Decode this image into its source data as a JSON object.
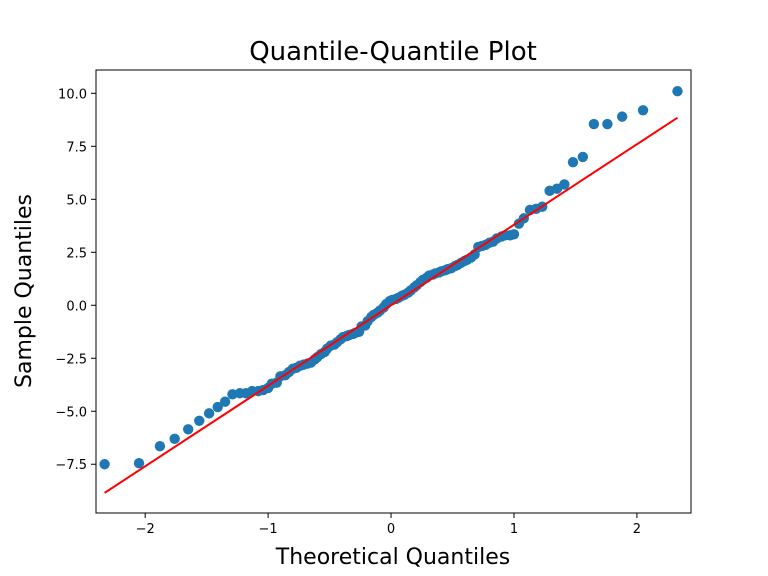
{
  "chart_data": {
    "type": "scatter",
    "title": "Quantile-Quantile Plot",
    "xlabel": "Theoretical Quantiles",
    "ylabel": "Sample Quantiles",
    "xlim": [
      -2.4,
      2.44
    ],
    "ylim": [
      -9.8,
      11.1
    ],
    "x_ticks": [
      -2,
      -1,
      0,
      1,
      2
    ],
    "x_tick_labels": [
      "−2",
      "−1",
      "0",
      "1",
      "2"
    ],
    "y_ticks": [
      -7.5,
      -5.0,
      -2.5,
      0.0,
      2.5,
      5.0,
      7.5,
      10.0
    ],
    "y_tick_labels": [
      "−7.5",
      "−5.0",
      "−2.5",
      "0.0",
      "2.5",
      "5.0",
      "7.5",
      "10.0"
    ],
    "grid": false,
    "legend": "none",
    "series": [
      {
        "kind": "points",
        "color": "#1f77b4",
        "x": [
          -2.33,
          -2.05,
          -1.88,
          -1.76,
          -1.65,
          -1.56,
          -1.48,
          -1.41,
          -1.35,
          -1.29,
          -1.23,
          -1.18,
          -1.13,
          -1.08,
          -1.04,
          -1.0,
          -0.97,
          -0.93,
          -0.9,
          -0.86,
          -0.83,
          -0.8,
          -0.77,
          -0.74,
          -0.71,
          -0.68,
          -0.65,
          -0.62,
          -0.6,
          -0.57,
          -0.54,
          -0.52,
          -0.49,
          -0.46,
          -0.44,
          -0.41,
          -0.39,
          -0.36,
          -0.34,
          -0.31,
          -0.29,
          -0.26,
          -0.24,
          -0.21,
          -0.19,
          -0.16,
          -0.14,
          -0.11,
          -0.09,
          -0.06,
          -0.04,
          -0.01,
          0.01,
          0.04,
          0.06,
          0.09,
          0.11,
          0.14,
          0.16,
          0.19,
          0.21,
          0.24,
          0.26,
          0.29,
          0.31,
          0.34,
          0.36,
          0.39,
          0.41,
          0.44,
          0.46,
          0.49,
          0.52,
          0.54,
          0.57,
          0.6,
          0.62,
          0.65,
          0.68,
          0.71,
          0.74,
          0.77,
          0.8,
          0.83,
          0.86,
          0.9,
          0.93,
          0.97,
          1.0,
          1.04,
          1.08,
          1.13,
          1.18,
          1.23,
          1.29,
          1.35,
          1.41,
          1.48,
          1.56,
          1.65,
          1.76,
          1.88,
          2.05,
          2.33
        ],
        "y": [
          -7.5,
          -7.45,
          -6.65,
          -6.3,
          -5.85,
          -5.45,
          -5.1,
          -4.8,
          -4.55,
          -4.2,
          -4.15,
          -4.15,
          -4.05,
          -4.05,
          -4.0,
          -3.9,
          -3.7,
          -3.65,
          -3.35,
          -3.3,
          -3.15,
          -3.0,
          -2.95,
          -2.85,
          -2.8,
          -2.75,
          -2.7,
          -2.55,
          -2.45,
          -2.3,
          -2.2,
          -2.05,
          -1.9,
          -1.85,
          -1.75,
          -1.6,
          -1.5,
          -1.45,
          -1.4,
          -1.35,
          -1.3,
          -1.25,
          -1.0,
          -0.95,
          -0.75,
          -0.55,
          -0.45,
          -0.35,
          -0.25,
          -0.1,
          0.05,
          0.2,
          0.25,
          0.3,
          0.35,
          0.45,
          0.5,
          0.6,
          0.7,
          0.85,
          0.95,
          1.1,
          1.2,
          1.3,
          1.4,
          1.45,
          1.5,
          1.55,
          1.6,
          1.65,
          1.7,
          1.75,
          1.85,
          1.9,
          2.0,
          2.1,
          2.15,
          2.25,
          2.4,
          2.75,
          2.8,
          2.85,
          2.95,
          3.0,
          3.15,
          3.25,
          3.3,
          3.3,
          3.35,
          3.85,
          4.1,
          4.5,
          4.55,
          4.65,
          5.4,
          5.5,
          5.7,
          6.75,
          7.0,
          8.55,
          8.55,
          8.9,
          9.2,
          10.1
        ]
      },
      {
        "kind": "line",
        "color": "#ff0000",
        "x": [
          -2.33,
          2.33
        ],
        "y": [
          -8.85,
          8.85
        ]
      }
    ]
  }
}
